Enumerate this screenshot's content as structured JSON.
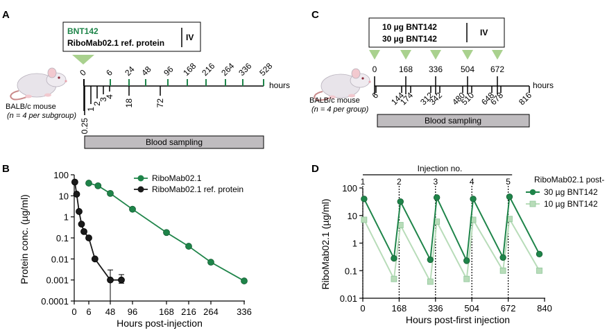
{
  "panels": {
    "a": "A",
    "b": "B",
    "c": "C",
    "d": "D"
  },
  "colors": {
    "green": "#1e8449",
    "lightgreen": "#b8dcb9",
    "lightgreen_stroke": "#8fc79a",
    "black": "#1a1a1a",
    "gray_box": "#bfbcbf",
    "tri": "#a9d18e"
  },
  "icons": [
    "mouse-icon-a",
    "mouse-icon-c"
  ],
  "panel_a": {
    "legend_line1": "BNT142",
    "legend_line2": "RiboMab02.1 ref. protein",
    "route": "IV",
    "mouse_label": "BALB/c mouse",
    "mouse_sub": "(n = 4 per subgroup)",
    "hours_label": "hours",
    "top_ticks": [
      "0",
      "6",
      "24",
      "48",
      "96",
      "168",
      "216",
      "264",
      "336",
      "528"
    ],
    "bottom_ticks": [
      "0.25",
      "1",
      "2",
      "3",
      "4",
      "18",
      "72"
    ],
    "blood_sampling": "Blood sampling"
  },
  "panel_c": {
    "legend_line1": "10 µg BNT142",
    "legend_line2": "30 µg BNT142",
    "route": "IV",
    "mouse_label": "BALB/c mouse",
    "mouse_sub": "(n = 4 per group)",
    "hours_label": "hours",
    "top_ticks": [
      "0",
      "168",
      "336",
      "504",
      "672"
    ],
    "bottom_ticks": [
      "6",
      "144",
      "174",
      "312",
      "342",
      "480",
      "510",
      "648",
      "678",
      "816"
    ],
    "blood_sampling": "Blood sampling"
  },
  "chart_data": [
    {
      "panel": "B",
      "type": "line",
      "title": "",
      "xlabel": "Hours post-injection",
      "ylabel": "Protein conc. (µg/ml)",
      "xlim": [
        0,
        340
      ],
      "ylim": [
        0.0001,
        100
      ],
      "yscale": "log",
      "xticks": [
        "0",
        "6",
        "48",
        "96",
        "168",
        "216",
        "264",
        "336"
      ],
      "yticks": [
        "100",
        "10",
        "1",
        "0.1",
        "0.01",
        "0.001",
        "0.0001"
      ],
      "legend": "top-right",
      "series": [
        {
          "name": "RiboMab02.1",
          "color": "#1e8449",
          "x": [
            6,
            24,
            48,
            96,
            168,
            216,
            264,
            336
          ],
          "y": [
            40,
            30,
            13,
            2.3,
            0.18,
            0.04,
            0.007,
            0.0009
          ]
        },
        {
          "name": "RiboMab02.1 ref. protein",
          "color": "#1a1a1a",
          "x": [
            0.25,
            1,
            2,
            3,
            4,
            6,
            18,
            48,
            72
          ],
          "y": [
            45,
            12,
            1.8,
            0.45,
            0.2,
            0.1,
            0.01,
            0.001,
            0.001
          ]
        }
      ]
    },
    {
      "panel": "D",
      "type": "line",
      "title": "Injection no.",
      "xlabel": "Hours post-first injection",
      "ylabel": "RiboMab02.1 (µg/ml)",
      "xlim": [
        0,
        840
      ],
      "ylim": [
        0.01,
        100
      ],
      "yscale": "log",
      "xticks": [
        "0",
        "168",
        "336",
        "504",
        "672",
        "840"
      ],
      "yticks": [
        "100",
        "10",
        "1",
        "0.1",
        "0.01"
      ],
      "injections": [
        {
          "label": "1",
          "x": 0
        },
        {
          "label": "2",
          "x": 168
        },
        {
          "label": "3",
          "x": 336
        },
        {
          "label": "4",
          "x": 504
        },
        {
          "label": "5",
          "x": 672
        }
      ],
      "legend_title": "RiboMab02.1 post-",
      "legend": "top-right",
      "series": [
        {
          "name": "30 µg BNT142",
          "color": "#1e8449",
          "x": [
            6,
            144,
            174,
            312,
            342,
            480,
            510,
            648,
            678,
            816
          ],
          "y": [
            40,
            0.28,
            32,
            0.25,
            45,
            0.23,
            40,
            0.3,
            48,
            0.4
          ]
        },
        {
          "name": "10 µg BNT142",
          "color": "#b8dcb9",
          "x": [
            6,
            144,
            174,
            312,
            342,
            480,
            510,
            648,
            678,
            816
          ],
          "y": [
            7,
            0.05,
            4.5,
            0.04,
            6,
            0.05,
            7,
            0.1,
            7.5,
            0.1
          ]
        }
      ]
    }
  ]
}
